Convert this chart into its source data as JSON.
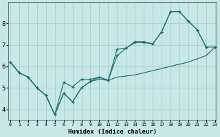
{
  "xlabel": "Humidex (Indice chaleur)",
  "bg_color": "#c8e8e8",
  "line_color": "#1a6e6e",
  "grid_color": "#a8cccc",
  "x": [
    0,
    1,
    2,
    3,
    4,
    5,
    6,
    7,
    8,
    9,
    10,
    11,
    12,
    13,
    14,
    15,
    16,
    17,
    18,
    19,
    20,
    21,
    22,
    23
  ],
  "line1": [
    6.2,
    5.7,
    5.5,
    5.0,
    4.65,
    3.75,
    5.25,
    5.05,
    5.4,
    5.4,
    5.5,
    5.35,
    6.5,
    6.85,
    7.15,
    7.15,
    7.05,
    7.6,
    8.55,
    8.55,
    8.1,
    7.7,
    6.9,
    6.9
  ],
  "line2": [
    6.2,
    5.7,
    5.5,
    5.0,
    4.65,
    3.75,
    4.75,
    4.35,
    5.0,
    5.3,
    5.4,
    5.35,
    5.5,
    5.55,
    5.6,
    5.7,
    5.8,
    5.9,
    6.0,
    6.1,
    6.2,
    6.35,
    6.5,
    6.9
  ],
  "line3": [
    6.2,
    5.7,
    5.5,
    5.0,
    4.65,
    3.75,
    4.75,
    4.35,
    5.0,
    5.3,
    5.5,
    5.35,
    6.8,
    6.85,
    7.1,
    7.1,
    7.05,
    7.6,
    8.55,
    8.55,
    8.1,
    7.7,
    6.9,
    6.9
  ],
  "ylim": [
    3.5,
    9.0
  ],
  "xlim": [
    -0.2,
    23.2
  ],
  "yticks": [
    4,
    5,
    6,
    7,
    8
  ],
  "xticks": [
    0,
    1,
    2,
    3,
    4,
    5,
    6,
    7,
    8,
    9,
    10,
    11,
    12,
    13,
    14,
    15,
    16,
    17,
    18,
    19,
    20,
    21,
    22,
    23
  ]
}
